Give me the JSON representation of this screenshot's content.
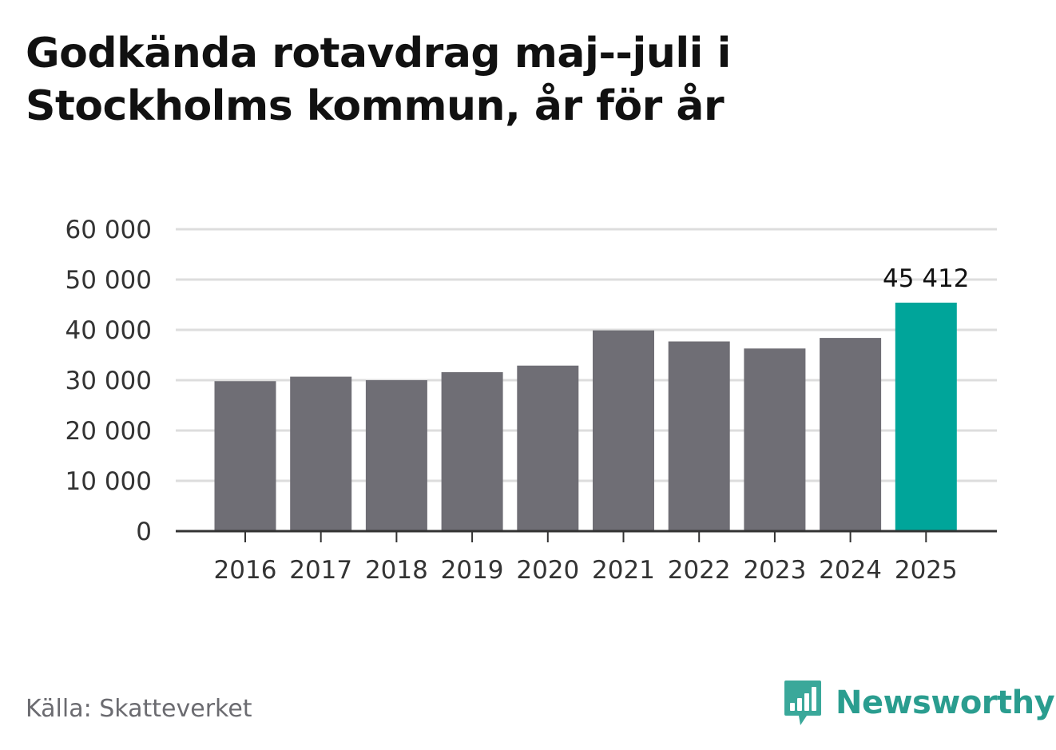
{
  "chart_data": {
    "type": "bar",
    "title": "Godkända rotavdrag maj--juli i Stockholms kommun, år för år",
    "categories": [
      "2016",
      "2017",
      "2018",
      "2019",
      "2020",
      "2021",
      "2022",
      "2023",
      "2024",
      "2025"
    ],
    "values": [
      29800,
      30700,
      30000,
      31600,
      32900,
      39900,
      37700,
      36300,
      38400,
      45412
    ],
    "highlighted_category": "2025",
    "value_labels": [
      {
        "category": "2025",
        "text": "45 412"
      }
    ],
    "ylim": [
      0,
      60000
    ],
    "yticks": [
      0,
      10000,
      20000,
      30000,
      40000,
      50000,
      60000
    ],
    "ytick_labels": [
      "0",
      "10 000",
      "20 000",
      "30 000",
      "40 000",
      "50 000",
      "60 000"
    ],
    "xlabel": "",
    "ylabel": "",
    "grid": true,
    "legend": "none",
    "colors": {
      "bar": "#6f6e75",
      "highlight": "#00a59a",
      "grid": "#dddddd",
      "axis": "#333333"
    }
  },
  "source": "Källa: Skatteverket",
  "brand": {
    "name": "Newsworthy",
    "icon": "bar-chart-speech-bubble-icon",
    "color": "#2a9d8f"
  }
}
